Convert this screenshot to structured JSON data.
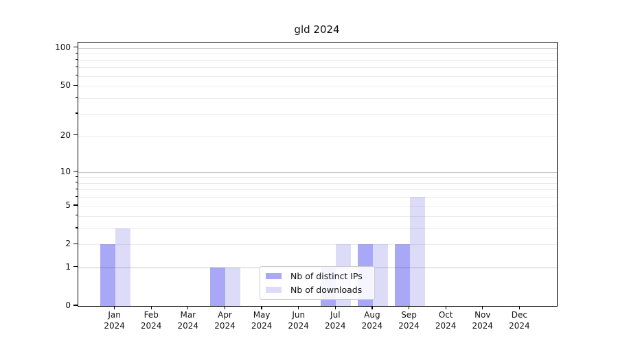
{
  "title": "gld 2024",
  "chart_data": {
    "type": "bar",
    "scale": "log10(1+x)",
    "categories": [
      "Jan",
      "Feb",
      "Mar",
      "Apr",
      "May",
      "Jun",
      "Jul",
      "Aug",
      "Sep",
      "Oct",
      "Nov",
      "Dec"
    ],
    "year_label": "2024",
    "series": [
      {
        "name": "Nb of distinct IPs",
        "color": "#a8a8f6",
        "values": [
          2,
          0,
          0,
          1,
          0,
          0,
          1,
          2,
          2,
          0,
          0,
          0
        ]
      },
      {
        "name": "Nb of downloads",
        "color": "#dcdcf8",
        "values": [
          3,
          0,
          0,
          1,
          0,
          0,
          2,
          2,
          6,
          0,
          0,
          0
        ]
      }
    ],
    "yticks": [
      0,
      1,
      2,
      5,
      10,
      20,
      50,
      100
    ],
    "ylim": [
      0,
      110
    ],
    "grid_major": [
      1,
      10,
      100
    ],
    "grid_minor": [
      2,
      3,
      4,
      5,
      6,
      7,
      8,
      9,
      20,
      30,
      40,
      50,
      60,
      70,
      80,
      90
    ],
    "legend_position": "inside-bottom-center",
    "grid": "on"
  },
  "colors": {
    "bar_distinct_ips": "#a8a8f6",
    "bar_downloads": "#dcdcf8",
    "grid_major": "#c6c6c6",
    "grid_minor": "#ebebeb",
    "spine": "#000000",
    "legend_border": "#cccccc"
  }
}
